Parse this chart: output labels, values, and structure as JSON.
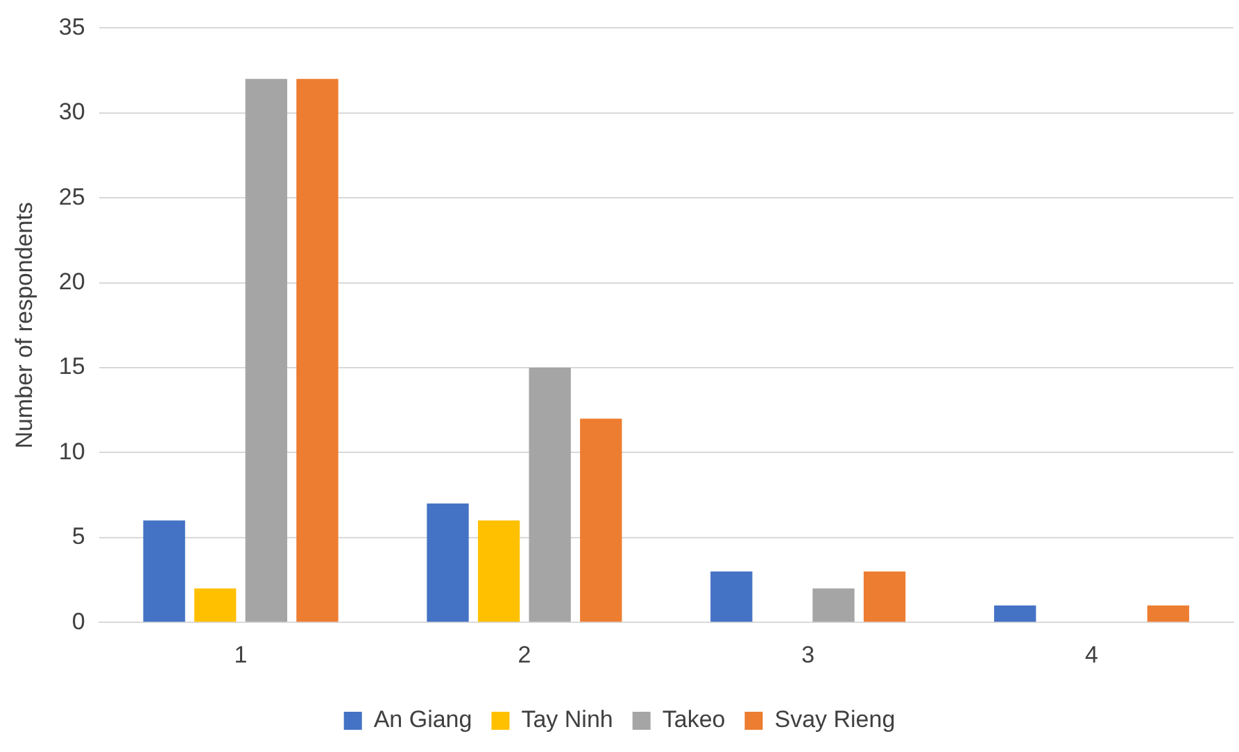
{
  "chart_data": {
    "type": "bar",
    "ylabel": "Number of respondents",
    "categories": [
      "1",
      "2",
      "3",
      "4"
    ],
    "series": [
      {
        "name": "An Giang",
        "color": "#4472c4",
        "values": [
          6,
          7,
          3,
          1
        ]
      },
      {
        "name": "Tay Ninh",
        "color": "#ffc000",
        "values": [
          2,
          6,
          0,
          0
        ]
      },
      {
        "name": "Takeo",
        "color": "#a5a5a5",
        "values": [
          32,
          15,
          2,
          0
        ]
      },
      {
        "name": "Svay Rieng",
        "color": "#ed7d31",
        "values": [
          32,
          12,
          3,
          1
        ]
      }
    ],
    "ylim": [
      0,
      35
    ],
    "yticks": [
      0,
      5,
      10,
      15,
      20,
      25,
      30,
      35
    ],
    "grid": "y",
    "legend": "bottom"
  }
}
